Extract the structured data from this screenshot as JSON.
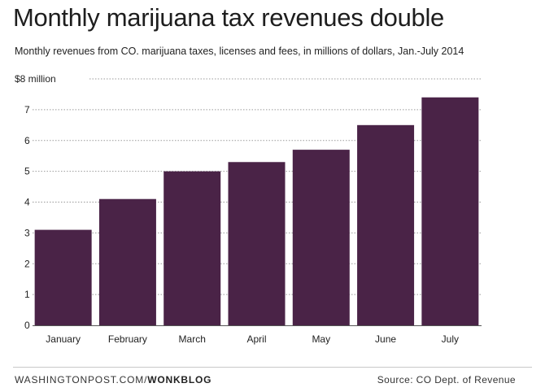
{
  "header": {
    "title": "Monthly marijuana tax revenues double",
    "subtitle": "Monthly revenues from CO. marijuana taxes, licenses and fees, in millions of dollars, Jan.-July 2014"
  },
  "footer": {
    "site": "WASHINGTONPOST.COM/",
    "brand": "WONKBLOG",
    "source": "Source: CO Dept. of Revenue"
  },
  "colors": {
    "bar": "#4a2347",
    "grid": "#9a9a9a",
    "axis": "#555555"
  },
  "chart_data": {
    "type": "bar",
    "title": "Monthly marijuana tax revenues double",
    "subtitle": "Monthly revenues from CO. marijuana taxes, licenses and fees, in millions of dollars, Jan.-July 2014",
    "categories": [
      "January",
      "February",
      "March",
      "April",
      "May",
      "June",
      "July"
    ],
    "values": [
      3.1,
      4.1,
      5.0,
      5.3,
      5.7,
      6.5,
      7.4
    ],
    "ylim": [
      0,
      8
    ],
    "yticks": [
      0,
      1,
      2,
      3,
      4,
      5,
      6,
      7,
      8
    ],
    "ytick_labels": [
      "0",
      "1",
      "2",
      "3",
      "4",
      "5",
      "6",
      "7",
      "$8 million"
    ],
    "xlabel": "",
    "ylabel": "",
    "grid": true
  }
}
